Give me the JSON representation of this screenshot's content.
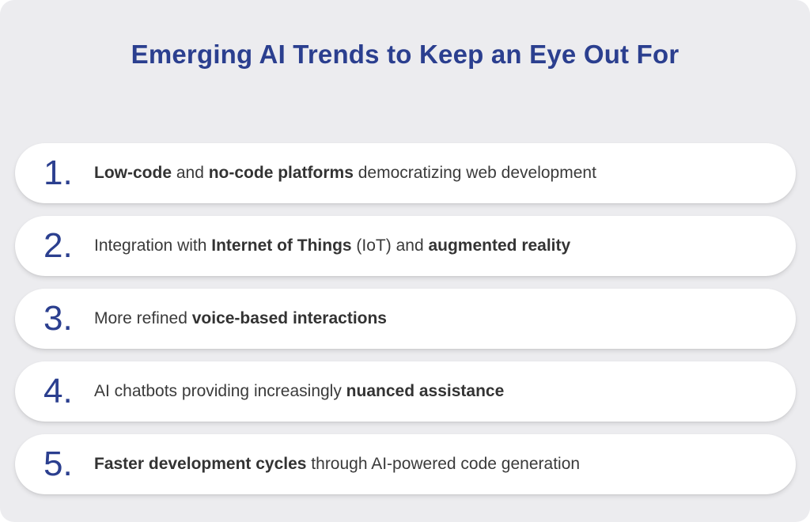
{
  "title": "Emerging AI Trends to Keep an Eye Out For",
  "colors": {
    "accent": "#2b3f8f",
    "background": "#ececef",
    "card": "#ffffff",
    "text": "#3a3a3a"
  },
  "items": [
    {
      "number": "1.",
      "segments": [
        {
          "text": "Low-code",
          "bold": true
        },
        {
          "text": " and ",
          "bold": false
        },
        {
          "text": "no-code platforms",
          "bold": true
        },
        {
          "text": " democratizing web development",
          "bold": false
        }
      ]
    },
    {
      "number": "2.",
      "segments": [
        {
          "text": "Integration with ",
          "bold": false
        },
        {
          "text": "Internet of Things",
          "bold": true
        },
        {
          "text": " (IoT) and ",
          "bold": false
        },
        {
          "text": "augmented reality",
          "bold": true
        }
      ]
    },
    {
      "number": "3.",
      "segments": [
        {
          "text": "More refined ",
          "bold": false
        },
        {
          "text": "voice-based interactions",
          "bold": true
        }
      ]
    },
    {
      "number": "4.",
      "segments": [
        {
          "text": "AI chatbots providing increasingly ",
          "bold": false
        },
        {
          "text": "nuanced assistance",
          "bold": true
        }
      ]
    },
    {
      "number": "5.",
      "segments": [
        {
          "text": "Faster development cycles",
          "bold": true
        },
        {
          "text": " through AI-powered code generation",
          "bold": false
        }
      ]
    }
  ]
}
